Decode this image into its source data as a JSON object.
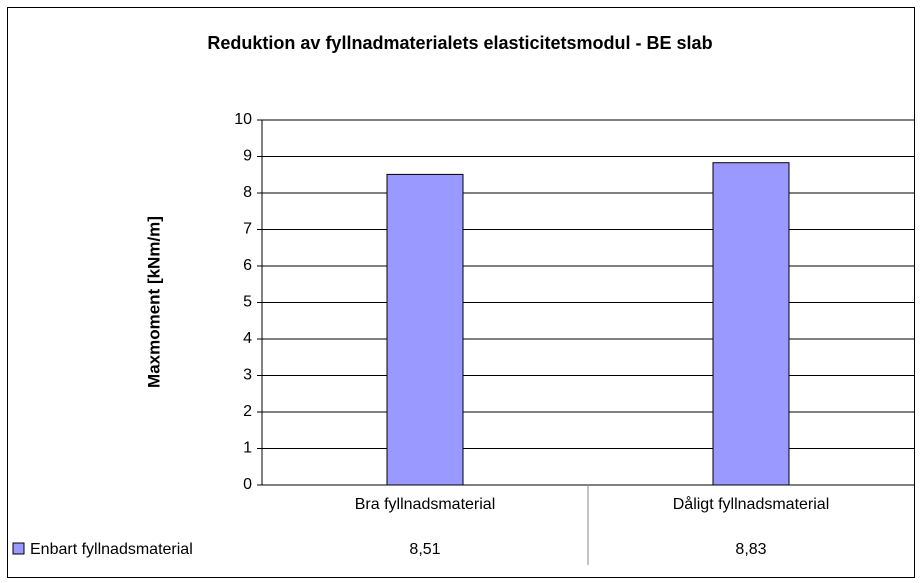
{
  "chart_data": {
    "type": "bar",
    "title": "Reduktion av fyllnadmaterialets elasticitetsmodul - BE slab",
    "y_label": "Maxmoment [kNm/m]",
    "categories": [
      "Bra fyllnadsmaterial",
      "Dåligt fyllnadsmaterial"
    ],
    "series": [
      {
        "name": "Enbart fyllnadsmaterial",
        "color": "#9999ff",
        "values": [
          8.51,
          8.83
        ],
        "value_labels": [
          "8,51",
          "8,83"
        ]
      }
    ],
    "ylim": [
      0,
      10
    ],
    "yticks": [
      0,
      1,
      2,
      3,
      4,
      5,
      6,
      7,
      8,
      9,
      10
    ],
    "grid": true
  }
}
